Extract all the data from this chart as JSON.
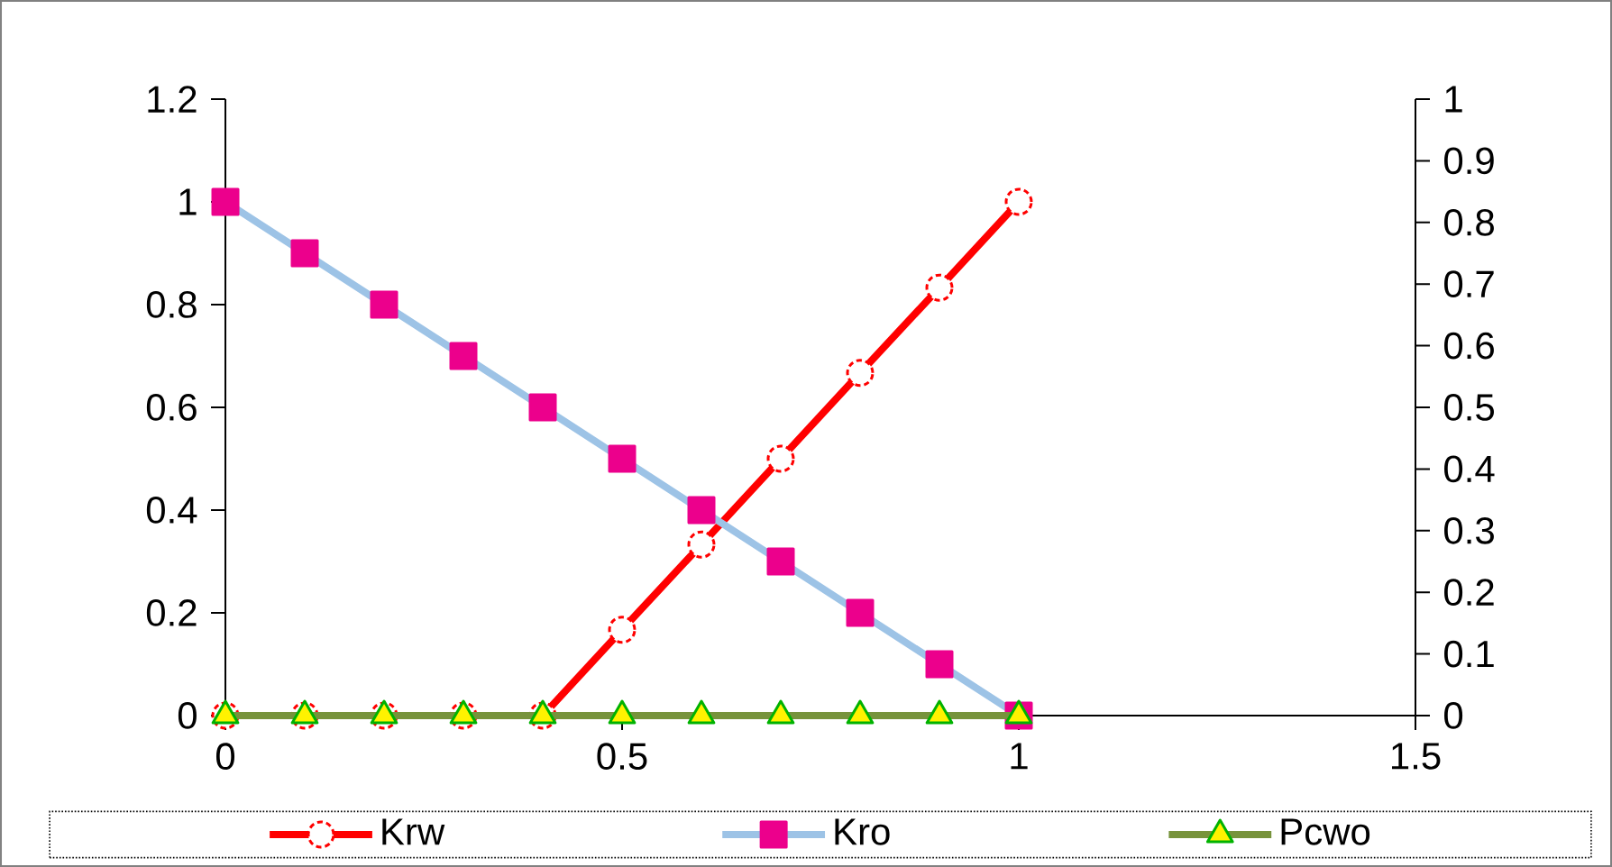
{
  "chart_data": {
    "type": "line",
    "x": [
      0,
      0.1,
      0.2,
      0.3,
      0.4,
      0.5,
      0.6,
      0.7,
      0.8,
      0.9,
      1
    ],
    "series": [
      {
        "name": "Krw",
        "color": "#ff0000",
        "marker": "circle",
        "values": [
          0,
          0,
          0,
          0,
          0,
          0.167,
          0.333,
          0.5,
          0.667,
          0.833,
          1
        ]
      },
      {
        "name": "Kro",
        "color": "#9dc3e6",
        "marker": "square",
        "values": [
          1,
          0.9,
          0.8,
          0.7,
          0.6,
          0.5,
          0.4,
          0.3,
          0.2,
          0.1,
          0
        ]
      },
      {
        "name": "Pcwo",
        "color": "#77933c",
        "marker": "triangle",
        "axis": "y2",
        "values": [
          0,
          0,
          0,
          0,
          0,
          0,
          0,
          0,
          0,
          0,
          0
        ]
      }
    ],
    "xlim": [
      0,
      1.5
    ],
    "xticks": [
      0,
      0.5,
      1,
      1.5
    ],
    "ylim": [
      0,
      1.2
    ],
    "yticks": [
      0,
      0.2,
      0.4,
      0.6,
      0.8,
      1,
      1.2
    ],
    "y2lim": [
      0,
      1
    ],
    "y2ticks": [
      0,
      0.1,
      0.2,
      0.3,
      0.4,
      0.5,
      0.6,
      0.7,
      0.8,
      0.9,
      1
    ],
    "grid": false,
    "legend": "bottom",
    "line_style": "solid"
  }
}
